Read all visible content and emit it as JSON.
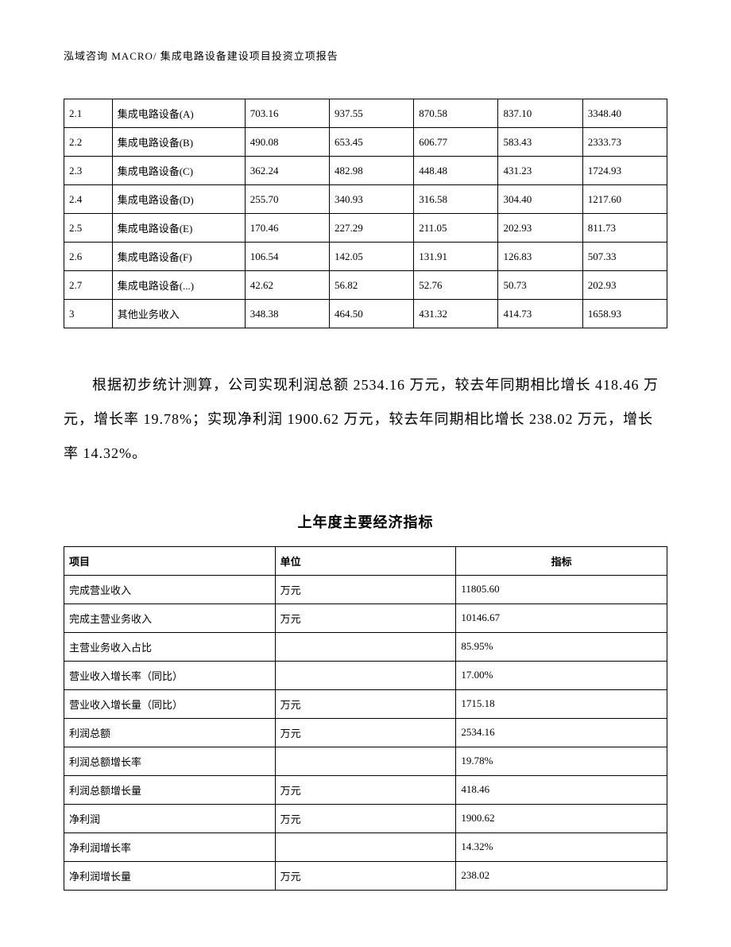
{
  "header": {
    "text": "泓域咨询 MACRO/ 集成电路设备建设项目投资立项报告"
  },
  "table1": {
    "col_widths": [
      "8%",
      "22%",
      "14%",
      "14%",
      "14%",
      "14%",
      "14%"
    ],
    "border_color": "#000000",
    "font_size": 13,
    "rows": [
      [
        "2.1",
        "集成电路设备(A)",
        "703.16",
        "937.55",
        "870.58",
        "837.10",
        "3348.40"
      ],
      [
        "2.2",
        "集成电路设备(B)",
        "490.08",
        "653.45",
        "606.77",
        "583.43",
        "2333.73"
      ],
      [
        "2.3",
        "集成电路设备(C)",
        "362.24",
        "482.98",
        "448.48",
        "431.23",
        "1724.93"
      ],
      [
        "2.4",
        "集成电路设备(D)",
        "255.70",
        "340.93",
        "316.58",
        "304.40",
        "1217.60"
      ],
      [
        "2.5",
        "集成电路设备(E)",
        "170.46",
        "227.29",
        "211.05",
        "202.93",
        "811.73"
      ],
      [
        "2.6",
        "集成电路设备(F)",
        "106.54",
        "142.05",
        "131.91",
        "126.83",
        "507.33"
      ],
      [
        "2.7",
        "集成电路设备(...)",
        "42.62",
        "56.82",
        "52.76",
        "50.73",
        "202.93"
      ],
      [
        "3",
        "其他业务收入",
        "348.38",
        "464.50",
        "431.32",
        "414.73",
        "1658.93"
      ]
    ]
  },
  "paragraph": {
    "text": "根据初步统计测算，公司实现利润总额 2534.16 万元，较去年同期相比增长 418.46 万元，增长率 19.78%；实现净利润 1900.62 万元，较去年同期相比增长 238.02 万元，增长率 14.32%。",
    "font_size": 18,
    "line_height": 2.4
  },
  "section_title": {
    "text": "上年度主要经济指标",
    "font_size": 18,
    "font_weight": "bold"
  },
  "table2": {
    "col_widths": [
      "35%",
      "30%",
      "35%"
    ],
    "border_color": "#000000",
    "font_size": 13,
    "headers": [
      "项目",
      "单位",
      "指标"
    ],
    "rows": [
      [
        "完成营业收入",
        "万元",
        "11805.60"
      ],
      [
        "完成主营业务收入",
        "万元",
        "10146.67"
      ],
      [
        "主营业务收入占比",
        "",
        "85.95%"
      ],
      [
        "营业收入增长率（同比）",
        "",
        "17.00%"
      ],
      [
        "营业收入增长量（同比）",
        "万元",
        "1715.18"
      ],
      [
        "利润总额",
        "万元",
        "2534.16"
      ],
      [
        "利润总额增长率",
        "",
        "19.78%"
      ],
      [
        "利润总额增长量",
        "万元",
        "418.46"
      ],
      [
        "净利润",
        "万元",
        "1900.62"
      ],
      [
        "净利润增长率",
        "",
        "14.32%"
      ],
      [
        "净利润增长量",
        "万元",
        "238.02"
      ]
    ]
  }
}
